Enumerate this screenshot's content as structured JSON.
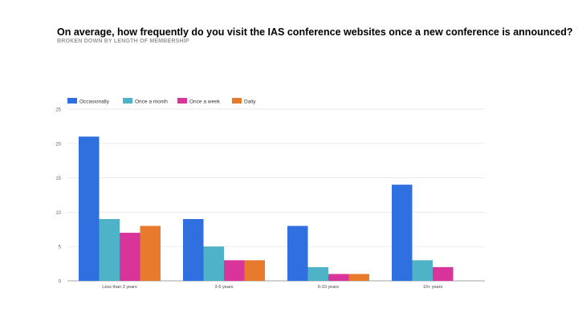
{
  "header": {
    "title": "On average, how frequently do you visit the IAS conference websites once a new conference is announced?",
    "subtitle": "BROKEN DOWN BY LENGTH OF MEMBERSHIP"
  },
  "chart_data": {
    "type": "bar",
    "title": "On average, how frequently do you visit the IAS conference websites once a new conference is announced?",
    "subtitle": "BROKEN DOWN BY LENGTH OF MEMBERSHIP",
    "categories": [
      "Less than 3 years",
      "3-5 years",
      "6-10 years",
      "10+ years"
    ],
    "series": [
      {
        "name": "Occasionally",
        "color": "#2f6fe0",
        "values": [
          21,
          9,
          8,
          14
        ]
      },
      {
        "name": "Once a month",
        "color": "#4fb3c8",
        "values": [
          9,
          5,
          2,
          3
        ]
      },
      {
        "name": "Once a week",
        "color": "#d8349a",
        "values": [
          7,
          3,
          1,
          2
        ]
      },
      {
        "name": "Daily",
        "color": "#e87a2e",
        "values": [
          8,
          3,
          1,
          0
        ]
      }
    ],
    "ylim": [
      0,
      25
    ],
    "yticks": [
      0,
      5,
      10,
      15,
      20,
      25
    ],
    "xlabel": "",
    "ylabel": "",
    "legend": "top-left",
    "grid": true
  }
}
